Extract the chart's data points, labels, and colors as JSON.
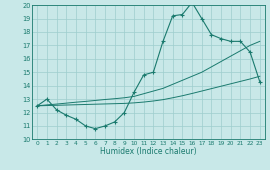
{
  "x": [
    0,
    1,
    2,
    3,
    4,
    5,
    6,
    7,
    8,
    9,
    10,
    11,
    12,
    13,
    14,
    15,
    16,
    17,
    18,
    19,
    20,
    21,
    22,
    23
  ],
  "y_main": [
    12.5,
    13.0,
    12.2,
    11.8,
    11.5,
    11.0,
    10.8,
    11.0,
    11.3,
    12.0,
    13.5,
    14.8,
    15.0,
    17.3,
    19.2,
    19.3,
    20.2,
    19.0,
    17.8,
    17.5,
    17.3,
    17.3,
    16.5,
    14.3
  ],
  "y_line_upper": [
    12.5,
    12.57,
    12.63,
    12.7,
    12.77,
    12.83,
    12.9,
    12.97,
    13.03,
    13.1,
    13.2,
    13.4,
    13.6,
    13.8,
    14.1,
    14.4,
    14.7,
    15.0,
    15.4,
    15.8,
    16.2,
    16.6,
    17.0,
    17.3
  ],
  "y_line_lower": [
    12.5,
    12.52,
    12.54,
    12.56,
    12.58,
    12.6,
    12.62,
    12.64,
    12.66,
    12.68,
    12.72,
    12.78,
    12.86,
    12.96,
    13.1,
    13.25,
    13.42,
    13.6,
    13.78,
    13.96,
    14.14,
    14.32,
    14.5,
    14.7
  ],
  "line_color": "#1a7a6e",
  "bg_color": "#c8e8e8",
  "grid_color": "#9ecece",
  "xlabel": "Humidex (Indice chaleur)",
  "ylim": [
    10,
    20
  ],
  "xlim": [
    -0.5,
    23.5
  ],
  "yticks": [
    10,
    11,
    12,
    13,
    14,
    15,
    16,
    17,
    18,
    19,
    20
  ],
  "xticks": [
    0,
    1,
    2,
    3,
    4,
    5,
    6,
    7,
    8,
    9,
    10,
    11,
    12,
    13,
    14,
    15,
    16,
    17,
    18,
    19,
    20,
    21,
    22,
    23
  ]
}
